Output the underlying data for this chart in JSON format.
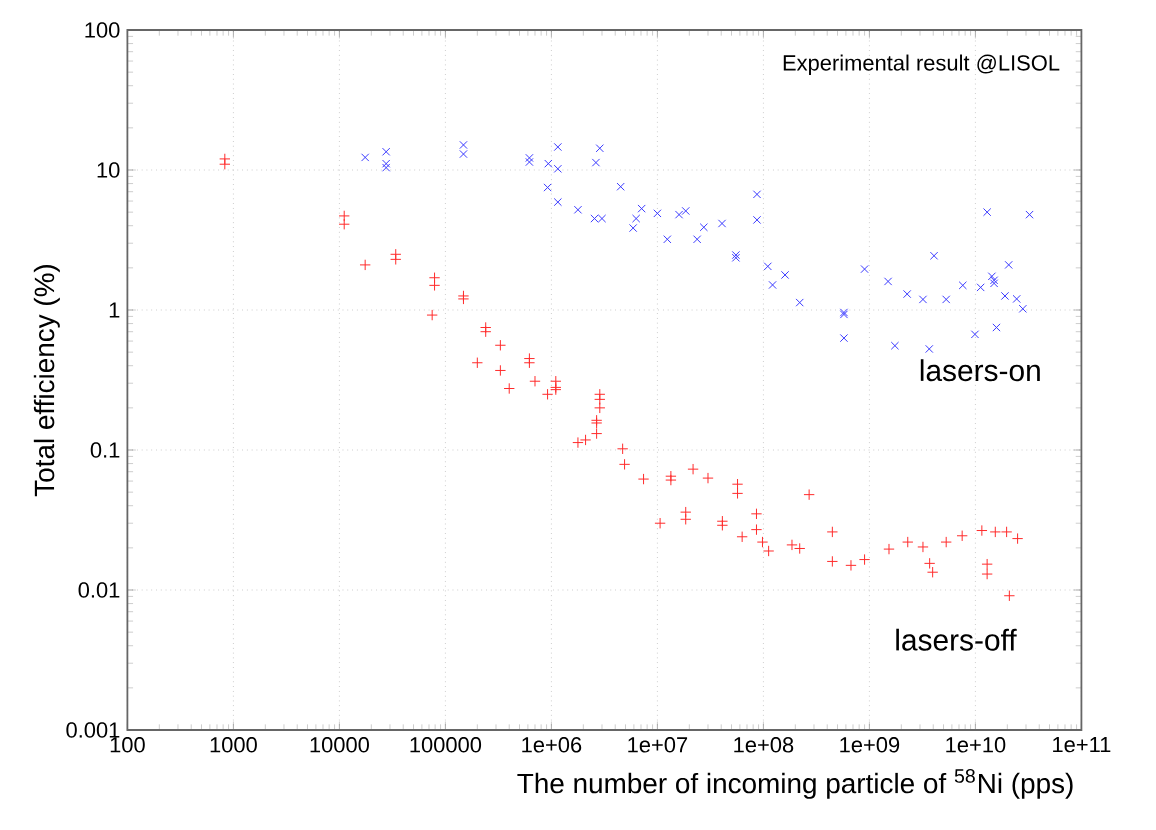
{
  "chart_data": {
    "type": "scatter",
    "xlabel": "The number of incoming particle of $^{58}$Ni (pps)",
    "ylabel": "Total efficiency (%)",
    "annotations": [
      "Experimental result @LISOL"
    ],
    "log": "xy",
    "grid": true,
    "legend": false,
    "xlim": [
      100,
      100000000000
    ],
    "ylim": [
      0.001,
      100
    ],
    "xticks": [
      100,
      1000,
      10000,
      100000,
      {
        "value": 1000000,
        "label": "1e+06"
      },
      {
        "value": 10000000,
        "label": "1e+07"
      },
      {
        "value": 100000000,
        "label": "1e+08"
      },
      {
        "value": 1000000000,
        "label": "1e+09"
      },
      {
        "value": 10000000000,
        "label": "1e+10"
      },
      {
        "value": 100000000000,
        "label": "1e+11"
      }
    ],
    "yticks": [
      0.001,
      0.01,
      0.1,
      1,
      10,
      100
    ],
    "series": [
      {
        "name": "lasers-on",
        "color": "#3a3aff",
        "marker": "cross",
        "x": [
          17500,
          27600,
          27600,
          27600,
          148000,
          148000,
          620000,
          620000,
          935000,
          1150000,
          1150000,
          920000,
          1150000,
          1780000,
          2550000,
          3000000,
          2860000,
          2630000,
          4500000,
          5900000,
          6300000,
          7100000,
          10000000,
          12400000,
          16000000,
          18500000,
          23700000,
          27400000,
          40700000,
          55000000,
          55000000,
          87000000,
          87000000,
          110000000,
          122000000,
          160000000,
          220000000,
          575000000,
          575000000,
          575000000,
          900000000,
          1500000000,
          1740000000,
          2270000000,
          3200000000,
          3670000000,
          4070000000,
          5300000000,
          7600000000,
          9900000000,
          11200000000,
          12900000000,
          14300000000,
          15000000000,
          15000000000,
          15800000000,
          19000000000,
          20600000000,
          24500000000,
          28000000000,
          32400000000
        ],
        "values": [
          12.3,
          13.5,
          11.1,
          10.4,
          15.1,
          13,
          12.2,
          11.4,
          11.1,
          10.2,
          14.6,
          7.5,
          5.9,
          5.2,
          4.5,
          4.5,
          14.3,
          11.3,
          7.6,
          3.85,
          4.5,
          5.3,
          4.9,
          3.2,
          4.8,
          5.1,
          3.2,
          3.9,
          4.15,
          2.47,
          2.36,
          6.7,
          4.4,
          2.05,
          1.51,
          1.78,
          1.13,
          0.96,
          0.93,
          0.63,
          1.96,
          1.6,
          0.556,
          1.3,
          1.19,
          0.527,
          2.44,
          1.19,
          1.5,
          0.67,
          1.45,
          5.0,
          1.74,
          1.63,
          1.55,
          0.75,
          1.26,
          2.1,
          1.2,
          1.02,
          4.8
        ]
      },
      {
        "name": "lasers-off",
        "color": "#ff2a2a",
        "marker": "plus",
        "x": [
          830,
          830,
          11100,
          11100,
          17500,
          34000,
          34000,
          79000,
          79000,
          75000,
          148000,
          148000,
          240000,
          240000,
          330000,
          200000,
          330000,
          620000,
          620000,
          400000,
          700000,
          920000,
          1100000,
          1100000,
          1100000,
          2860000,
          2860000,
          2860000,
          2670000,
          2670000,
          2670000,
          1780000,
          2100000,
          4700000,
          4900000,
          7400000,
          10600000,
          13400000,
          13400000,
          18500000,
          18500000,
          21700000,
          30000000,
          41000000,
          41000000,
          57000000,
          57000000,
          63000000,
          86000000,
          86000000,
          98000000,
          112000000,
          186000000,
          220000000,
          270000000,
          447000000,
          447000000,
          670000000,
          900000000,
          1530000000,
          2300000000,
          3200000000,
          3700000000,
          3950000000,
          5300000000,
          7500000000,
          11500000000,
          12900000000,
          12900000000,
          15400000000,
          19700000000,
          20900000000,
          25000000000
        ],
        "values": [
          12,
          11,
          4.7,
          4.1,
          2.1,
          2.5,
          2.3,
          1.7,
          1.5,
          0.92,
          1.26,
          1.2,
          0.75,
          0.7,
          0.56,
          0.42,
          0.37,
          0.45,
          0.42,
          0.275,
          0.31,
          0.25,
          0.31,
          0.28,
          0.27,
          0.25,
          0.23,
          0.2,
          0.163,
          0.156,
          0.131,
          0.113,
          0.118,
          0.102,
          0.079,
          0.062,
          0.03,
          0.065,
          0.061,
          0.036,
          0.032,
          0.073,
          0.063,
          0.031,
          0.029,
          0.057,
          0.049,
          0.024,
          0.035,
          0.027,
          0.022,
          0.019,
          0.021,
          0.0198,
          0.048,
          0.026,
          0.016,
          0.015,
          0.0165,
          0.0196,
          0.022,
          0.0203,
          0.0155,
          0.0134,
          0.022,
          0.0244,
          0.0266,
          0.0153,
          0.013,
          0.026,
          0.026,
          0.0091,
          0.0233
        ]
      }
    ]
  }
}
